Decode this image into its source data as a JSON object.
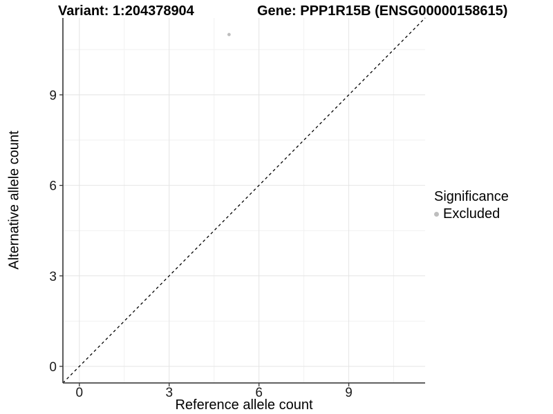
{
  "titles": {
    "variant": "Variant: 1:204378904",
    "gene": "Gene: PPP1R15B (ENSG00000158615)"
  },
  "chart_data": {
    "type": "scatter",
    "xlabel": "Reference allele count",
    "ylabel": "Alternative allele count",
    "xlim": [
      -0.55,
      11.55
    ],
    "ylim": [
      -0.55,
      11.55
    ],
    "x_ticks": [
      0,
      3,
      6,
      9
    ],
    "y_ticks": [
      0,
      3,
      6,
      9
    ],
    "x_minor_ticks": [
      1.5,
      4.5,
      7.5,
      10.5
    ],
    "y_minor_ticks": [
      1.5,
      4.5,
      7.5,
      10.5
    ],
    "grid": true,
    "points": [
      {
        "x": 5,
        "y": 11,
        "significance": "Excluded"
      }
    ],
    "reference_line": {
      "kind": "identity",
      "style": "dashed",
      "color": "#000000"
    },
    "legend": {
      "title": "Significance",
      "position": "right",
      "items": [
        {
          "label": "Excluded",
          "marker": "circle",
          "color": "#bebebe"
        }
      ]
    }
  },
  "colors": {
    "background": "#ffffff",
    "grid_major": "#e4e4e4",
    "grid_minor": "#f1f1f1",
    "axis_line": "#4a4a4a",
    "tick_mark": "#333333",
    "tick_label": "#1a1a1a",
    "point": "#bebebe",
    "reference_line": "#000000"
  }
}
